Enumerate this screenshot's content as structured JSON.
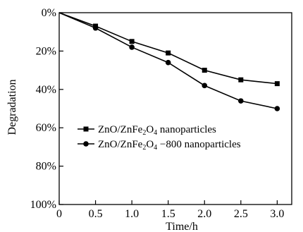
{
  "chart_data": {
    "type": "line",
    "title": "",
    "xlabel": "Time/h",
    "ylabel": "Degradation",
    "x": [
      0,
      0.5,
      1.0,
      1.5,
      2.0,
      2.5,
      3.0
    ],
    "x_tick_values": [
      0,
      0.5,
      1.0,
      1.5,
      2.0,
      2.5,
      3.0
    ],
    "x_tick_labels": [
      "0",
      "0.5",
      "1.0",
      "1.5",
      "2.0",
      "2.5",
      "3.0"
    ],
    "xlim": [
      0,
      3.2
    ],
    "y_tick_values": [
      0,
      20,
      40,
      60,
      80,
      100
    ],
    "y_tick_labels": [
      "0%",
      "20%",
      "40%",
      "60%",
      "80%",
      "100%"
    ],
    "ylim": [
      0,
      100
    ],
    "y_inverted": true,
    "grid": false,
    "legend_position": "left-middle",
    "series": [
      {
        "name": "ZnO/ZnFe2O4 nanoparticles",
        "legend": {
          "pre": "ZnO/ZnFe",
          "sub1": "2",
          "mid": "O",
          "sub2": "4",
          "post": " nanoparticles"
        },
        "marker": "square",
        "color": "#000000",
        "values": [
          0,
          7,
          15,
          21,
          30,
          35,
          37
        ]
      },
      {
        "name": "ZnO/ZnFe2O4 −800 nanoparticles",
        "legend": {
          "pre": "ZnO/ZnFe",
          "sub1": "2",
          "mid": "O",
          "sub2": "4",
          "post": " −800 nanoparticles"
        },
        "marker": "circle",
        "color": "#000000",
        "values": [
          0,
          8,
          18,
          26,
          38,
          46,
          50
        ]
      }
    ]
  }
}
